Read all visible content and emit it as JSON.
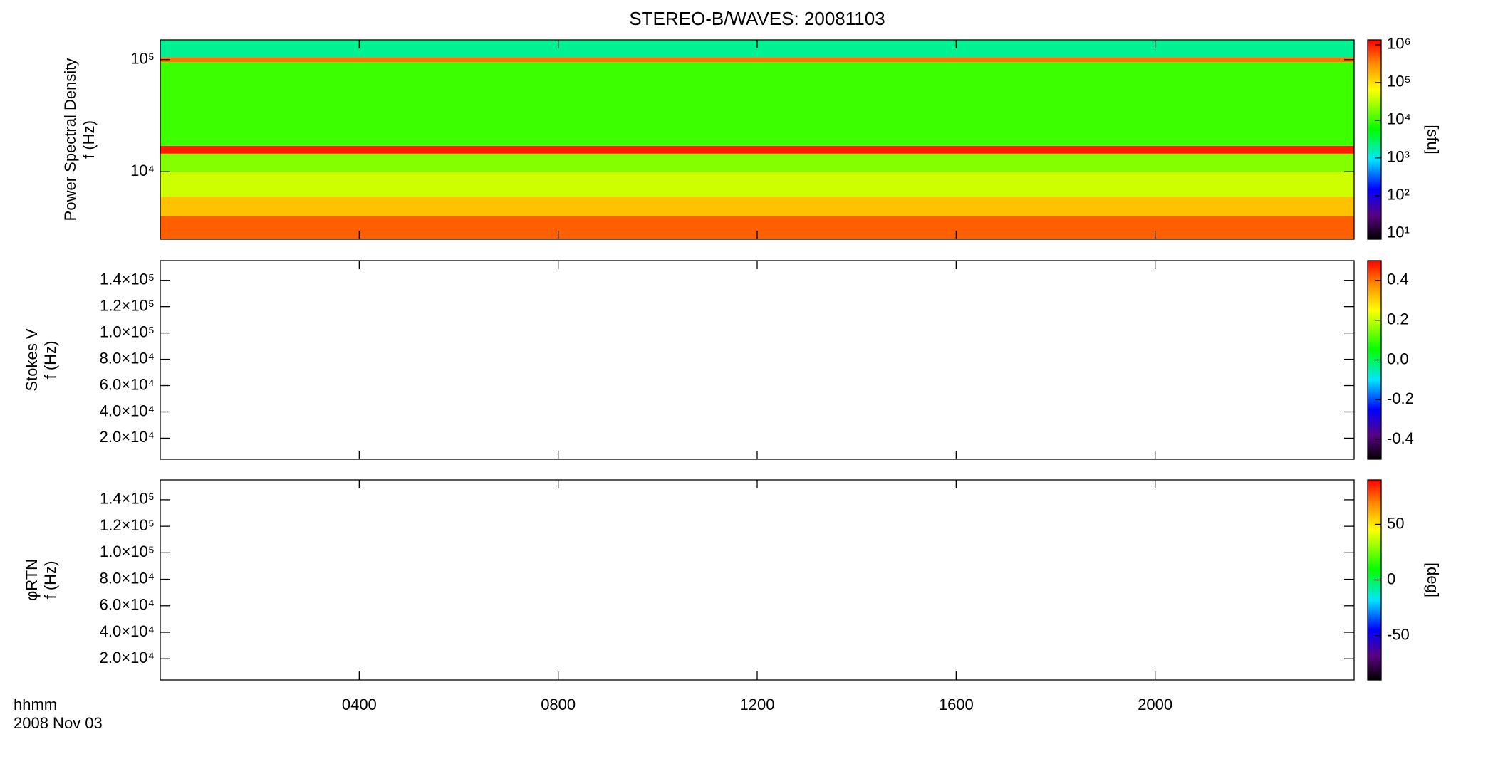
{
  "chart_data": [
    {
      "type": "heatmap",
      "title": "STEREO-B/WAVES: 20081103",
      "ylabel": [
        "Power Spectral Density",
        "f (Hz)"
      ],
      "yscale": "log",
      "ylim": [
        2500,
        150000
      ],
      "yticks": [
        {
          "value": 10000,
          "label": "10⁴"
        },
        {
          "value": 100000,
          "label": "10⁵"
        }
      ],
      "xlim": [
        0,
        24
      ],
      "xticks": [
        {
          "value": 4,
          "label": "0400"
        },
        {
          "value": 8,
          "label": "0800"
        },
        {
          "value": 12,
          "label": "1200"
        },
        {
          "value": 16,
          "label": "1600"
        },
        {
          "value": 20,
          "label": "2000"
        }
      ],
      "y_edges": [
        2500,
        4000,
        6000,
        10000,
        14500,
        17000,
        95000,
        105000,
        150000
      ],
      "values": [
        500000,
        150000,
        40000,
        20000,
        1000000,
        10000,
        400000,
        2000
      ],
      "colorbar": {
        "scale": "log",
        "clim": [
          7,
          1350000
        ],
        "label": "[sfu]",
        "ticks": [
          {
            "value": 10,
            "label": "10¹"
          },
          {
            "value": 100,
            "label": "10²"
          },
          {
            "value": 1000,
            "label": "10³"
          },
          {
            "value": 10000,
            "label": "10⁴"
          },
          {
            "value": 100000,
            "label": "10⁵"
          },
          {
            "value": 1000000,
            "label": "10⁶"
          }
        ]
      }
    },
    {
      "type": "heatmap",
      "ylabel": [
        "Stokes V",
        "f (Hz)"
      ],
      "yscale": "linear",
      "ylim": [
        4000,
        155000
      ],
      "yticks": [
        {
          "value": 20000,
          "label": "2.0×10⁴"
        },
        {
          "value": 40000,
          "label": "4.0×10⁴"
        },
        {
          "value": 60000,
          "label": "6.0×10⁴"
        },
        {
          "value": 80000,
          "label": "8.0×10⁴"
        },
        {
          "value": 100000,
          "label": "1.0×10⁵"
        },
        {
          "value": 120000,
          "label": "1.2×10⁵"
        },
        {
          "value": 140000,
          "label": "1.4×10⁵"
        }
      ],
      "xlim": [
        0,
        24
      ],
      "xticks": [
        {
          "value": 4,
          "label": "0400"
        },
        {
          "value": 8,
          "label": "0800"
        },
        {
          "value": 12,
          "label": "1200"
        },
        {
          "value": 16,
          "label": "1600"
        },
        {
          "value": 20,
          "label": "2000"
        }
      ],
      "colorbar": {
        "scale": "linear",
        "clim": [
          -0.5,
          0.5
        ],
        "ticks": [
          -0.4,
          -0.2,
          {
            "value": 0,
            "label": "0.0"
          },
          0.2,
          0.4
        ]
      }
    },
    {
      "type": "heatmap",
      "ylabel": [
        "φRTN",
        "f (Hz)"
      ],
      "yscale": "linear",
      "ylim": [
        4000,
        155000
      ],
      "yticks": [
        {
          "value": 20000,
          "label": "2.0×10⁴"
        },
        {
          "value": 40000,
          "label": "4.0×10⁴"
        },
        {
          "value": 60000,
          "label": "6.0×10⁴"
        },
        {
          "value": 80000,
          "label": "8.0×10⁴"
        },
        {
          "value": 100000,
          "label": "1.0×10⁵"
        },
        {
          "value": 120000,
          "label": "1.2×10⁵"
        },
        {
          "value": 140000,
          "label": "1.4×10⁵"
        }
      ],
      "xlim": [
        0,
        24
      ],
      "xticks": [
        {
          "value": 4,
          "label": "0400"
        },
        {
          "value": 8,
          "label": "0800"
        },
        {
          "value": 12,
          "label": "1200"
        },
        {
          "value": 16,
          "label": "1600"
        },
        {
          "value": 20,
          "label": "2000"
        }
      ],
      "xlabel": "hhmm",
      "date": "2008 Nov 03",
      "colorbar": {
        "scale": "linear",
        "clim": [
          -90,
          90
        ],
        "label": "[deg]",
        "ticks": [
          -50,
          0,
          50
        ]
      }
    }
  ]
}
